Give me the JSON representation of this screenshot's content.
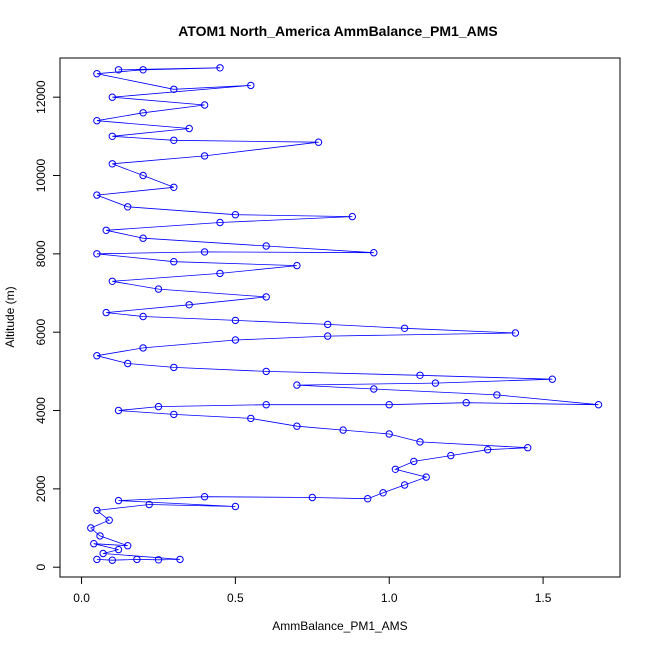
{
  "chart_data": {
    "type": "scatter",
    "title": "ATOM1 North_America AmmBalance_PM1_AMS",
    "xlabel": "AmmBalance_PM1_AMS",
    "ylabel": "Altitude (m)",
    "xlim": [
      -0.07,
      1.75
    ],
    "ylim": [
      -250,
      13000
    ],
    "xticks": [
      0.0,
      0.5,
      1.0,
      1.5
    ],
    "xtick_labels": [
      "0.0",
      "0.5",
      "1.0",
      "1.5"
    ],
    "yticks": [
      0,
      2000,
      4000,
      6000,
      8000,
      10000,
      12000
    ],
    "ytick_labels": [
      "0",
      "2000",
      "4000",
      "6000",
      "8000",
      "10000",
      "12000"
    ],
    "grid": false,
    "legend": "none",
    "series": [
      {
        "color": "#0000ff",
        "marker": "open-circle",
        "connected": true,
        "points": [
          [
            0.05,
            200
          ],
          [
            0.1,
            180
          ],
          [
            0.18,
            200
          ],
          [
            0.25,
            190
          ],
          [
            0.32,
            200
          ],
          [
            0.07,
            350
          ],
          [
            0.12,
            450
          ],
          [
            0.04,
            600
          ],
          [
            0.15,
            550
          ],
          [
            0.06,
            800
          ],
          [
            0.03,
            1000
          ],
          [
            0.09,
            1200
          ],
          [
            0.05,
            1450
          ],
          [
            0.22,
            1600
          ],
          [
            0.5,
            1550
          ],
          [
            0.12,
            1700
          ],
          [
            0.4,
            1800
          ],
          [
            0.75,
            1780
          ],
          [
            0.93,
            1750
          ],
          [
            0.98,
            1900
          ],
          [
            1.05,
            2100
          ],
          [
            1.12,
            2300
          ],
          [
            1.02,
            2500
          ],
          [
            1.08,
            2700
          ],
          [
            1.2,
            2850
          ],
          [
            1.32,
            3000
          ],
          [
            1.45,
            3050
          ],
          [
            1.1,
            3200
          ],
          [
            1.0,
            3400
          ],
          [
            0.85,
            3500
          ],
          [
            0.7,
            3600
          ],
          [
            0.55,
            3800
          ],
          [
            0.3,
            3900
          ],
          [
            0.12,
            4000
          ],
          [
            0.25,
            4100
          ],
          [
            0.6,
            4150
          ],
          [
            1.0,
            4150
          ],
          [
            1.25,
            4200
          ],
          [
            1.68,
            4150
          ],
          [
            1.35,
            4400
          ],
          [
            0.95,
            4550
          ],
          [
            0.7,
            4650
          ],
          [
            1.15,
            4700
          ],
          [
            1.53,
            4800
          ],
          [
            1.1,
            4900
          ],
          [
            0.6,
            5000
          ],
          [
            0.3,
            5100
          ],
          [
            0.15,
            5200
          ],
          [
            0.05,
            5400
          ],
          [
            0.2,
            5600
          ],
          [
            0.5,
            5800
          ],
          [
            0.8,
            5900
          ],
          [
            1.41,
            5980
          ],
          [
            1.05,
            6100
          ],
          [
            0.8,
            6200
          ],
          [
            0.5,
            6300
          ],
          [
            0.2,
            6400
          ],
          [
            0.08,
            6500
          ],
          [
            0.35,
            6700
          ],
          [
            0.6,
            6900
          ],
          [
            0.25,
            7100
          ],
          [
            0.1,
            7300
          ],
          [
            0.45,
            7500
          ],
          [
            0.7,
            7700
          ],
          [
            0.3,
            7800
          ],
          [
            0.05,
            8000
          ],
          [
            0.4,
            8050
          ],
          [
            0.95,
            8030
          ],
          [
            0.6,
            8200
          ],
          [
            0.2,
            8400
          ],
          [
            0.08,
            8600
          ],
          [
            0.45,
            8800
          ],
          [
            0.88,
            8950
          ],
          [
            0.5,
            9000
          ],
          [
            0.15,
            9200
          ],
          [
            0.05,
            9500
          ],
          [
            0.3,
            9700
          ],
          [
            0.2,
            10000
          ],
          [
            0.1,
            10300
          ],
          [
            0.4,
            10500
          ],
          [
            0.77,
            10850
          ],
          [
            0.3,
            10900
          ],
          [
            0.1,
            11000
          ],
          [
            0.35,
            11200
          ],
          [
            0.05,
            11400
          ],
          [
            0.2,
            11600
          ],
          [
            0.4,
            11800
          ],
          [
            0.1,
            12000
          ],
          [
            0.55,
            12300
          ],
          [
            0.3,
            12200
          ],
          [
            0.05,
            12600
          ],
          [
            0.2,
            12700
          ],
          [
            0.45,
            12750
          ],
          [
            0.12,
            12700
          ]
        ]
      }
    ]
  }
}
